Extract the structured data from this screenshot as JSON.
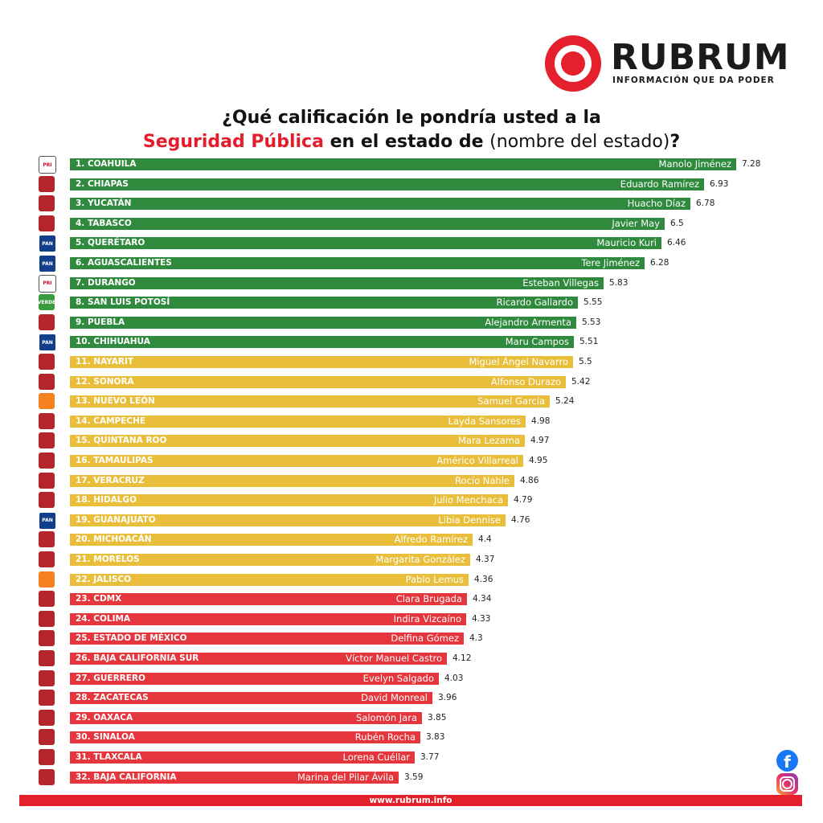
{
  "brand": {
    "name": "RUBRUM",
    "tagline": "INFORMACIÓN QUE DA PODER",
    "color": "#e3202b"
  },
  "title": {
    "line1": "¿Qué calificación le pondría usted a la",
    "highlight": "Seguridad Pública",
    "mid": " en el estado de ",
    "paren": "(nombre del estado)",
    "end": "?"
  },
  "footer": {
    "url": "www.rubrum.info"
  },
  "social": {
    "icons": [
      "facebook-icon",
      "instagram-icon"
    ]
  },
  "colors": {
    "green": "#2f8a3e",
    "yellow": "#e8be3b",
    "red": "#e5353d"
  },
  "chart_data": {
    "type": "bar",
    "orientation": "horizontal",
    "categories": [
      "1. COAHUILA",
      "2. CHIAPAS",
      "3. YUCATÁN",
      "4. TABASCO",
      "5. QUERÉTARO",
      "6. AGUASCALIENTES",
      "7. DURANGO",
      "8. SAN LUIS POTOSÍ",
      "9. PUEBLA",
      "10. CHIHUAHUA",
      "11. NAYARIT",
      "12. SONORA",
      "13. NUEVO LEÓN",
      "14. CAMPECHE",
      "15. QUINTANA ROO",
      "16. TAMAULIPAS",
      "17. VERACRUZ",
      "18. HIDALGO",
      "19. GUANAJUATO",
      "20. MICHOACÁN",
      "21. MORELOS",
      "22. JALISCO",
      "23. CDMX",
      "24. COLIMA",
      "25. ESTADO DE MÉXICO",
      "26. BAJA CALIFORNIA SUR",
      "27. GUERRERO",
      "28. ZACATECAS",
      "29. OAXACA",
      "30. SINALOA",
      "31. TLAXCALA",
      "32. BAJA CALIFORNIA"
    ],
    "governors": [
      "Manolo Jiménez",
      "Eduardo Ramírez",
      "Huacho Díaz",
      "Javier May",
      "Mauricio Kuri",
      "Tere Jiménez",
      "Esteban Villegas",
      "Ricardo Gallardo",
      "Alejandro Armenta",
      "Maru Campos",
      "Miguel Ángel Navarro",
      "Alfonso Durazo",
      "Samuel García",
      "Layda Sansores",
      "Mara Lezama",
      "Américo Villarreal",
      "Rocío Nahle",
      "Julio Menchaca",
      "Libia Dennise",
      "Alfredo Ramírez",
      "Margarita González",
      "Pablo Lemus",
      "Clara Brugada",
      "Indira Vizcaíno",
      "Delfina Gómez",
      "Víctor Manuel Castro",
      "Evelyn Salgado",
      "David Monreal",
      "Salomón Jara",
      "Rubén Rocha",
      "Lorena Cuéllar",
      "Marina del Pilar Ávila"
    ],
    "values": [
      7.28,
      6.93,
      6.78,
      6.5,
      6.46,
      6.28,
      5.83,
      5.55,
      5.53,
      5.51,
      5.5,
      5.42,
      5.24,
      4.98,
      4.97,
      4.95,
      4.86,
      4.79,
      4.76,
      4.4,
      4.37,
      4.36,
      4.34,
      4.33,
      4.3,
      4.12,
      4.03,
      3.96,
      3.85,
      3.83,
      3.77,
      3.59
    ],
    "value_labels": [
      "7.28",
      "6.93",
      "6.78",
      "6.5",
      "6.46",
      "6.28",
      "5.83",
      "5.55",
      "5.53",
      "5.51",
      "5.5",
      "5.42",
      "5.24",
      "4.98",
      "4.97",
      "4.95",
      "4.86",
      "4.79",
      "4.76",
      "4.4",
      "4.37",
      "4.36",
      "4.34",
      "4.33",
      "4.3",
      "4.12",
      "4.03",
      "3.96",
      "3.85",
      "3.83",
      "3.77",
      "3.59"
    ],
    "parties": [
      "pri",
      "morena",
      "morena",
      "morena",
      "pan",
      "pan",
      "pri",
      "verde",
      "morena",
      "pan",
      "morena",
      "morena",
      "mc",
      "morena",
      "morena",
      "morena",
      "morena",
      "morena",
      "pan",
      "morena",
      "morena",
      "mc",
      "morena",
      "morena",
      "morena",
      "morena",
      "morena",
      "morena",
      "morena",
      "morena",
      "morena",
      "morena"
    ],
    "tiers": [
      "green",
      "green",
      "green",
      "green",
      "green",
      "green",
      "green",
      "green",
      "green",
      "green",
      "yellow",
      "yellow",
      "yellow",
      "yellow",
      "yellow",
      "yellow",
      "yellow",
      "yellow",
      "yellow",
      "yellow",
      "yellow",
      "yellow",
      "red",
      "red",
      "red",
      "red",
      "red",
      "red",
      "red",
      "red",
      "red",
      "red"
    ],
    "xlim": [
      0,
      7.28
    ],
    "title": "¿Qué calificación le pondría usted a la Seguridad Pública en el estado de (nombre del estado)?",
    "grid": false,
    "legend": "none"
  }
}
